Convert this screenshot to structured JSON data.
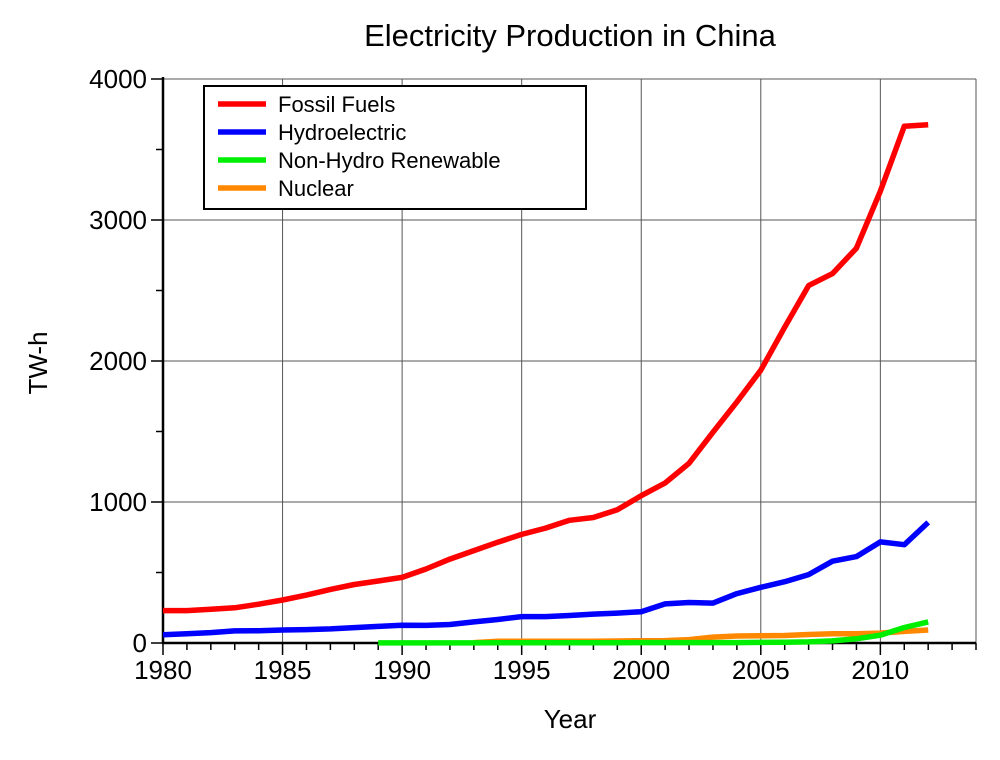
{
  "chart_data": {
    "type": "line",
    "title": "Electricity Production in China",
    "xlabel": "Year",
    "ylabel": "TW-h",
    "xlim": [
      1980,
      2014
    ],
    "ylim": [
      0,
      4000
    ],
    "x_ticks": [
      1980,
      1985,
      1990,
      1995,
      2000,
      2005,
      2010
    ],
    "x_tick_labels": [
      "1980",
      "1985",
      "1990",
      "1995",
      "2000",
      "2005",
      "2010"
    ],
    "y_ticks": [
      0,
      1000,
      2000,
      3000,
      4000
    ],
    "y_tick_labels": [
      "0",
      "1000",
      "2000",
      "3000",
      "4000"
    ],
    "grid": true,
    "legend_position": "top-left",
    "series": [
      {
        "name": "Fossil Fuels",
        "color": "#ff0000",
        "x": [
          1980,
          1981,
          1982,
          1983,
          1984,
          1985,
          1986,
          1987,
          1988,
          1989,
          1990,
          1991,
          1992,
          1993,
          1994,
          1995,
          1996,
          1997,
          1998,
          1999,
          2000,
          2001,
          2002,
          2003,
          2004,
          2005,
          2006,
          2007,
          2008,
          2009,
          2010,
          2011,
          2012
        ],
        "y": [
          230,
          230,
          240,
          250,
          275,
          305,
          340,
          380,
          415,
          440,
          465,
          525,
          595,
          655,
          715,
          770,
          815,
          870,
          890,
          945,
          1045,
          1135,
          1275,
          1495,
          1710,
          1935,
          2240,
          2535,
          2620,
          2800,
          3205,
          3665,
          3675
        ]
      },
      {
        "name": "Hydroelectric",
        "color": "#0000ff",
        "x": [
          1980,
          1981,
          1982,
          1983,
          1984,
          1985,
          1986,
          1987,
          1988,
          1989,
          1990,
          1991,
          1992,
          1993,
          1994,
          1995,
          1996,
          1997,
          1998,
          1999,
          2000,
          2001,
          2002,
          2003,
          2004,
          2005,
          2006,
          2007,
          2008,
          2009,
          2010,
          2011,
          2012
        ],
        "y": [
          58,
          66,
          74,
          86,
          87,
          92,
          95,
          100,
          109,
          118,
          126,
          125,
          131,
          150,
          167,
          187,
          187,
          195,
          205,
          212,
          222,
          277,
          287,
          283,
          350,
          395,
          435,
          485,
          580,
          613,
          717,
          697,
          855
        ]
      },
      {
        "name": "Non-Hydro Renewable",
        "color": "#00ee00",
        "x": [
          1989,
          1990,
          1991,
          1992,
          1993,
          1994,
          1995,
          1996,
          1997,
          1998,
          1999,
          2000,
          2001,
          2002,
          2003,
          2004,
          2005,
          2006,
          2007,
          2008,
          2009,
          2010,
          2011,
          2012
        ],
        "y": [
          1,
          1,
          1,
          1,
          1,
          2,
          2,
          2,
          2,
          2,
          2,
          3,
          3,
          3,
          3,
          3,
          4,
          5,
          8,
          15,
          30,
          55,
          110,
          150
        ]
      },
      {
        "name": "Nuclear",
        "color": "#ff8800",
        "x": [
          1993,
          1994,
          1995,
          1996,
          1997,
          1998,
          1999,
          2000,
          2001,
          2002,
          2003,
          2004,
          2005,
          2006,
          2007,
          2008,
          2009,
          2010,
          2011,
          2012
        ],
        "y": [
          3,
          12,
          12,
          13,
          13,
          13,
          14,
          16,
          17,
          24,
          42,
          50,
          52,
          53,
          60,
          65,
          66,
          70,
          82,
          92
        ]
      }
    ]
  }
}
